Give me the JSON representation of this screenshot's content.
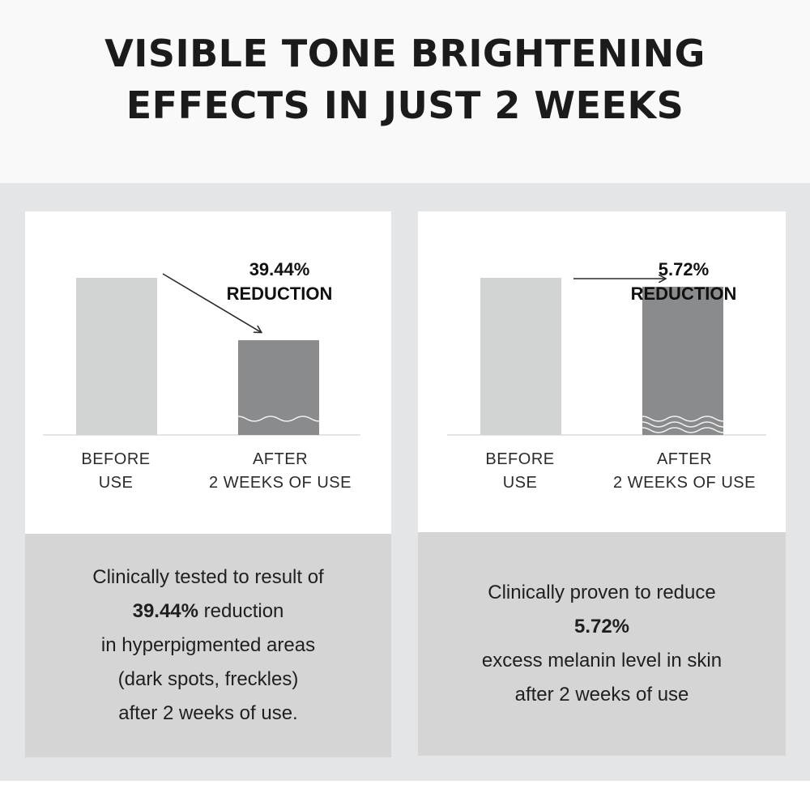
{
  "header": {
    "title_line1": "VISIBLE TONE BRIGHTENING",
    "title_line2": "EFFECTS IN JUST 2 WEEKS"
  },
  "chart_data": [
    {
      "type": "bar",
      "categories": [
        "BEFORE USE",
        "AFTER 2 WEEKS OF USE"
      ],
      "category_lines": [
        [
          "BEFORE",
          "USE"
        ],
        [
          "AFTER",
          "2 WEEKS OF USE"
        ]
      ],
      "values": [
        100,
        60.56
      ],
      "relative_scale": true,
      "callout_value": "39.44%",
      "callout_label": "REDUCTION",
      "bar_colors": [
        "#d2d3d3",
        "#8a8b8c"
      ]
    },
    {
      "type": "bar",
      "categories": [
        "BEFORE USE",
        "AFTER 2 WEEKS OF USE"
      ],
      "category_lines": [
        [
          "BEFORE",
          "USE"
        ],
        [
          "AFTER",
          "2 WEEKS OF USE"
        ]
      ],
      "values": [
        100,
        94.28
      ],
      "relative_scale": true,
      "callout_value": "5.72%",
      "callout_label": "REDUCTION",
      "bar_colors": [
        "#d2d3d3",
        "#8a8b8c"
      ]
    }
  ],
  "descriptions": [
    {
      "line1": "Clinically tested to result of",
      "line2_bold": "39.44%",
      "line2_rest": " reduction",
      "line3": "in hyperpigmented areas",
      "line4": "(dark spots, freckles)",
      "line5": "after 2 weeks of use."
    },
    {
      "line1": "Clinically proven to reduce",
      "line2_bold": "5.72%",
      "line3": "excess melanin level in skin",
      "line4": "after 2 weeks of use"
    }
  ],
  "colors": {
    "top_band": "#f9f9f9",
    "panel_band": "#e4e5e7",
    "description_bg": "#d5d5d6",
    "arrow": "#2a2a2a"
  }
}
